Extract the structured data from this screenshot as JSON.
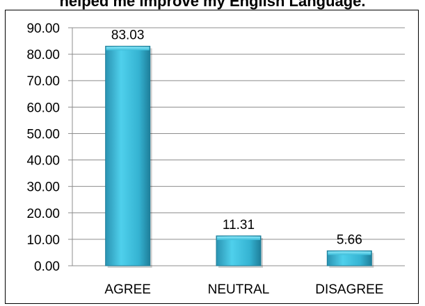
{
  "chart_data": {
    "type": "bar",
    "title": "helped me improve my English Language.",
    "categories": [
      "AGREE",
      "NEUTRAL",
      "DISAGREE"
    ],
    "values": [
      83.03,
      11.31,
      5.66
    ],
    "value_labels": [
      "83.03",
      "11.31",
      "5.66"
    ],
    "ylim": [
      0,
      90
    ],
    "yticks": [
      "0.00",
      "10.00",
      "20.00",
      "30.00",
      "40.00",
      "50.00",
      "60.00",
      "70.00",
      "80.00",
      "90.00"
    ],
    "grid": true,
    "legend": "none",
    "bar_color": "#3bbcd9"
  }
}
